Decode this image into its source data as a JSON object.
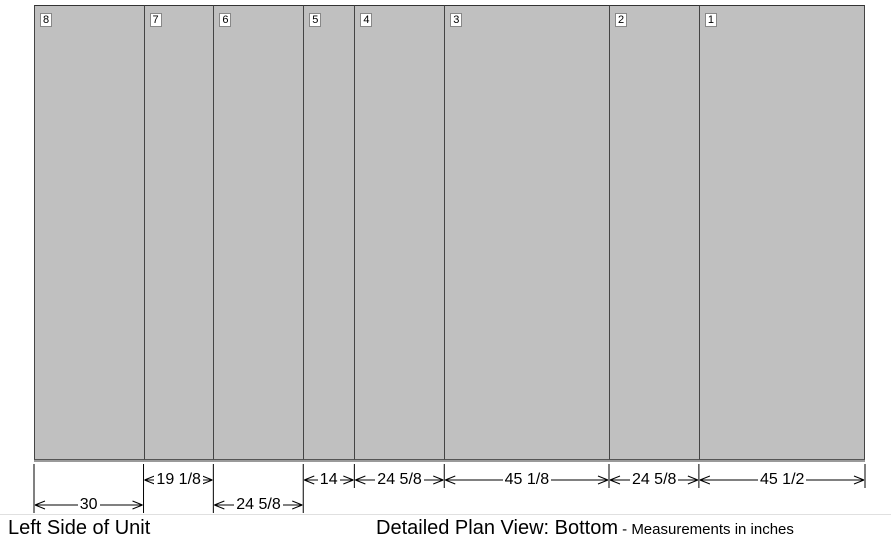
{
  "sections": [
    {
      "number": "8",
      "width": 30
    },
    {
      "number": "7",
      "width": 19.125
    },
    {
      "number": "6",
      "width": 24.625
    },
    {
      "number": "5",
      "width": 14
    },
    {
      "number": "4",
      "width": 24.625
    },
    {
      "number": "3",
      "width": 45.125
    },
    {
      "number": "2",
      "width": 24.625
    },
    {
      "number": "1",
      "width": 45.5
    }
  ],
  "dimension_labels": [
    "30",
    "19 1/8",
    "24 5/8",
    "14",
    "24 5/8",
    "45 1/8",
    "24 5/8",
    "45 1/2"
  ],
  "footer": {
    "left_label": "Left Side of Unit",
    "view_title": "Detailed Plan View: Bottom",
    "units_note": " - Measurements in inches"
  }
}
